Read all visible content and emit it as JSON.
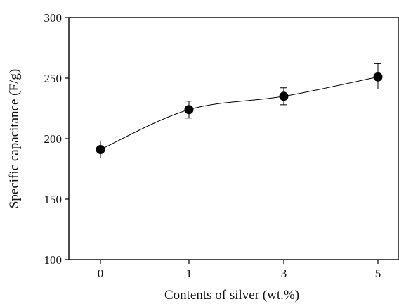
{
  "chart_data": {
    "type": "scatter",
    "xlabel": "Contents of silver (wt.%)",
    "ylabel": "Specific capacitance (F/g)",
    "ylim": [
      100,
      300
    ],
    "yticks": [
      100,
      150,
      200,
      250,
      300
    ],
    "categories": [
      "0",
      "1",
      "3",
      "5"
    ],
    "series": [
      {
        "values": [
          191,
          224,
          235,
          251
        ],
        "error_low": [
          184,
          217,
          228,
          241
        ],
        "error_high": [
          198,
          231,
          242,
          262
        ],
        "marker": "filled-circle",
        "smooth_line": true
      }
    ],
    "grid": false,
    "legend": "none",
    "colors": {
      "marker": "#000000",
      "line": "#000000"
    }
  }
}
